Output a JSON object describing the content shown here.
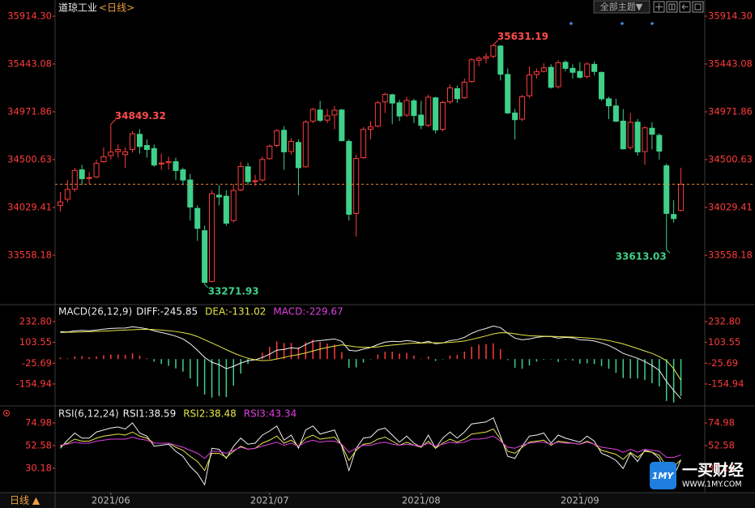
{
  "chart_data": [
    {
      "type": "candlestick",
      "title": "道琼工业",
      "subtitle": "<日线>",
      "categories": [
        null,
        null,
        null,
        null,
        null,
        null,
        null,
        "2021/06",
        null,
        null,
        null,
        null,
        null,
        null,
        null,
        null,
        null,
        null,
        null,
        null,
        null,
        null,
        null,
        null,
        null,
        null,
        null,
        null,
        null,
        "2021/07",
        null,
        null,
        null,
        null,
        null,
        null,
        null,
        null,
        null,
        null,
        null,
        null,
        null,
        null,
        null,
        null,
        null,
        null,
        null,
        null,
        "2021/08",
        null,
        null,
        null,
        null,
        null,
        null,
        null,
        null,
        null,
        null,
        null,
        null,
        null,
        null,
        null,
        null,
        null,
        null,
        null,
        null,
        null,
        "2021/09",
        null,
        null,
        null,
        null,
        null,
        null,
        null,
        null,
        null,
        null,
        null,
        null,
        null,
        null
      ],
      "open": [
        34050,
        34110,
        34210,
        34400,
        34320,
        34330,
        34480,
        34540,
        34580,
        34550,
        34600,
        34750,
        34640,
        34610,
        34460,
        34470,
        34480,
        34400,
        34300,
        34020,
        33800,
        33300,
        34150,
        34140,
        33900,
        34200,
        34430,
        34290,
        34300,
        34510,
        34640,
        34790,
        34580,
        34670,
        34430,
        34880,
        34990,
        34890,
        34940,
        34990,
        34680,
        33970,
        34520,
        34800,
        34830,
        35070,
        35140,
        35060,
        34940,
        35080,
        34940,
        34840,
        35110,
        34800,
        35070,
        35200,
        35110,
        35270,
        35480,
        35500,
        35520,
        35620,
        35340,
        34960,
        34900,
        35130,
        35340,
        35370,
        35410,
        35220,
        35460,
        35400,
        35370,
        35320,
        35440,
        35360,
        35100,
        35030,
        34880,
        34620,
        34870,
        34580,
        34810,
        34740,
        34440,
        33960,
        34000
      ],
      "high": [
        34180,
        34300,
        34420,
        34450,
        34380,
        34500,
        34620,
        34849.32,
        34650,
        34620,
        34780,
        34800,
        34700,
        34650,
        34560,
        34530,
        34520,
        34420,
        34360,
        34050,
        33850,
        34200,
        34250,
        34200,
        34260,
        34480,
        34470,
        34350,
        34530,
        34650,
        34800,
        34830,
        34710,
        34700,
        34890,
        35010,
        35080,
        35000,
        35030,
        35000,
        34700,
        34550,
        34820,
        34880,
        35080,
        35160,
        35150,
        35090,
        35120,
        35100,
        35080,
        35140,
        35120,
        35080,
        35240,
        35230,
        35300,
        35500,
        35520,
        35550,
        35631.19,
        35630,
        35400,
        35000,
        35140,
        35420,
        35400,
        35450,
        35440,
        35480,
        35480,
        35440,
        35460,
        35460,
        35470,
        35370,
        35120,
        35100,
        35000,
        34960,
        34900,
        34830,
        34870,
        34760,
        34460,
        34100,
        34420
      ],
      "low": [
        33990,
        34080,
        34180,
        34250,
        34260,
        34320,
        34470,
        34500,
        34520,
        34420,
        34570,
        34560,
        34520,
        34430,
        34400,
        34400,
        34300,
        34250,
        33900,
        33700,
        33271.93,
        33290,
        34050,
        33850,
        33880,
        34190,
        34250,
        34240,
        34280,
        34500,
        34620,
        34400,
        34550,
        34150,
        34420,
        34860,
        34870,
        34860,
        34800,
        34680,
        33900,
        33740,
        34510,
        34700,
        34820,
        34960,
        34850,
        34880,
        34920,
        34860,
        34800,
        34820,
        34760,
        34780,
        35050,
        35060,
        35100,
        35260,
        35420,
        35450,
        35500,
        35280,
        34950,
        34700,
        34880,
        35110,
        35300,
        35360,
        35200,
        35200,
        35370,
        35300,
        35300,
        35300,
        35330,
        35080,
        34900,
        34870,
        34600,
        34600,
        34540,
        34450,
        34600,
        34500,
        33613.03,
        33880,
        33990
      ],
      "close": [
        34084,
        34207,
        34394,
        34312,
        34323,
        34464,
        34529,
        34575,
        34600,
        34577,
        34756,
        34630,
        34600,
        34447,
        34466,
        34480,
        34393,
        34299,
        34033,
        33823,
        33290,
        34165,
        34133,
        33874,
        34196,
        34433,
        34283,
        34292,
        34502,
        34633,
        34786,
        34577,
        34681,
        34421,
        34870,
        34996,
        34888,
        34933,
        34987,
        34687,
        33962,
        34512,
        34798,
        34823,
        35061,
        35144,
        35058,
        34930,
        35084,
        34935,
        34838,
        35116,
        34793,
        35064,
        35208,
        35101,
        35264,
        35485,
        35499,
        35515,
        35625,
        35343,
        34961,
        34894,
        35120,
        35335,
        35366,
        35405,
        35213,
        35456,
        35400,
        35361,
        35312,
        35443,
        35369,
        35100,
        35031,
        34879,
        34607,
        34869,
        34577,
        34814,
        34751,
        34584,
        33970,
        33919,
        34258
      ],
      "up_color": "#ff3c3c",
      "down_color": "#3fd08a",
      "last_price_line": true,
      "last_price_color": "#e0863a",
      "ylim": [
        33079,
        36010
      ],
      "yticks": [
        {
          "value": 35914.3,
          "label": "35914.30"
        },
        35443.08,
        34971.86,
        34500.63,
        34029.41,
        33558.18
      ],
      "annotations": [
        {
          "label": "34849.32",
          "value": 34849.32,
          "kind": "high",
          "color": "#ff4d4d"
        },
        {
          "label": "33271.93",
          "value": 33271.93,
          "kind": "low",
          "color": "#3fd08a"
        },
        {
          "label": "35631.19",
          "value": 35631.19,
          "kind": "high",
          "color": "#ff4d4d"
        },
        {
          "label": "33613.03",
          "value": 33613.03,
          "kind": "low",
          "color": "#3fd08a"
        }
      ]
    },
    {
      "type": "macd",
      "title": "MACD(26,12,9)",
      "ylim": [
        -281,
        333
      ],
      "yticks": [
        {
          "value": 232.8,
          "label": "232.80"
        },
        103.55,
        -25.69,
        -154.94
      ],
      "series": [
        {
          "name": "DIFF:-245.85",
          "kind": "line",
          "color": "#f2f2f2",
          "values": [
            170,
            168,
            175,
            178,
            176,
            180,
            186,
            190,
            192,
            193,
            200,
            195,
            188,
            175,
            165,
            155,
            142,
            125,
            95,
            55,
            10,
            -20,
            -35,
            -60,
            -45,
            -25,
            -10,
            -5,
            10,
            30,
            55,
            60,
            70,
            65,
            90,
            110,
            115,
            120,
            125,
            110,
            55,
            50,
            62,
            72,
            90,
            105,
            110,
            108,
            115,
            110,
            100,
            110,
            95,
            100,
            115,
            120,
            135,
            160,
            178,
            190,
            205,
            195,
            160,
            130,
            120,
            125,
            135,
            140,
            140,
            130,
            135,
            132,
            120,
            118,
            112,
            100,
            85,
            62,
            35,
            20,
            5,
            -15,
            -40,
            -70,
            -140,
            -195,
            -245.85
          ]
        },
        {
          "name": "DEA:-131.02",
          "kind": "line",
          "color": "#e6e64a",
          "values": [
            165,
            166,
            167,
            169,
            170,
            172,
            174,
            176,
            178,
            180,
            182,
            184,
            185,
            183,
            180,
            176,
            171,
            164,
            155,
            140,
            120,
            100,
            80,
            58,
            38,
            20,
            5,
            -5,
            -10,
            -8,
            0,
            10,
            20,
            28,
            38,
            50,
            62,
            72,
            80,
            88,
            82,
            76,
            73,
            73,
            76,
            82,
            87,
            91,
            96,
            99,
            99,
            102,
            101,
            101,
            104,
            107,
            112,
            122,
            133,
            144,
            156,
            164,
            163,
            157,
            150,
            145,
            143,
            142,
            141,
            139,
            138,
            137,
            134,
            131,
            127,
            122,
            115,
            105,
            94,
            80,
            65,
            50,
            35,
            15,
            -10,
            -60,
            -131.02
          ]
        },
        {
          "name": "MACD:-229.67",
          "kind": "bar",
          "color": "#e040e0",
          "up_color": "#ff3c3c",
          "down_color": "#3fd08a",
          "values": [
            10,
            4,
            16,
            18,
            12,
            16,
            24,
            28,
            28,
            26,
            36,
            22,
            6,
            -16,
            -30,
            -42,
            -58,
            -78,
            -120,
            -170,
            -220,
            -240,
            -230,
            -236,
            -166,
            -90,
            -30,
            0,
            40,
            76,
            110,
            100,
            100,
            74,
            104,
            120,
            106,
            96,
            90,
            44,
            -54,
            -52,
            -22,
            -2,
            28,
            46,
            46,
            34,
            38,
            22,
            2,
            16,
            -12,
            -2,
            22,
            26,
            46,
            76,
            90,
            92,
            98,
            62,
            -6,
            -54,
            -60,
            -40,
            -16,
            -4,
            -2,
            -18,
            -6,
            -10,
            -28,
            -26,
            -30,
            -44,
            -60,
            -86,
            -118,
            -120,
            -120,
            -130,
            -150,
            -170,
            -260,
            -270,
            -229.67
          ]
        }
      ]
    },
    {
      "type": "line",
      "title": "RSI(6,12,24)",
      "ylim": [
        7,
        91
      ],
      "yticks": [
        74.98,
        52.58,
        30.18
      ],
      "series": [
        {
          "name": "RSI1:38.59",
          "color": "#f2f2f2",
          "values": [
            50,
            58,
            65,
            60,
            60,
            66,
            68,
            70,
            71,
            69,
            75,
            65,
            62,
            52,
            53,
            54,
            47,
            42,
            32,
            25,
            14,
            50,
            49,
            40,
            52,
            60,
            54,
            55,
            63,
            67,
            72,
            58,
            63,
            50,
            68,
            72,
            64,
            66,
            68,
            52,
            28,
            50,
            60,
            61,
            68,
            70,
            63,
            56,
            62,
            55,
            51,
            63,
            50,
            60,
            66,
            60,
            66,
            74,
            75,
            76,
            80,
            62,
            42,
            40,
            52,
            62,
            63,
            65,
            55,
            63,
            60,
            58,
            56,
            62,
            57,
            45,
            42,
            38,
            30,
            45,
            37,
            48,
            46,
            40,
            22,
            22,
            38.59
          ]
        },
        {
          "name": "RSI2:38.48",
          "color": "#e6e64a",
          "values": [
            52,
            55,
            59,
            57,
            57,
            60,
            62,
            63,
            64,
            63,
            66,
            62,
            60,
            55,
            55,
            55,
            51,
            48,
            42,
            37,
            28,
            45,
            45,
            41,
            47,
            52,
            49,
            50,
            55,
            58,
            62,
            55,
            58,
            52,
            60,
            63,
            59,
            60,
            61,
            53,
            38,
            48,
            54,
            55,
            59,
            61,
            57,
            53,
            56,
            53,
            51,
            57,
            50,
            55,
            59,
            56,
            59,
            64,
            65,
            66,
            69,
            59,
            47,
            45,
            51,
            56,
            57,
            58,
            53,
            57,
            56,
            55,
            54,
            57,
            54,
            48,
            46,
            44,
            39,
            46,
            41,
            47,
            46,
            43,
            32,
            32,
            38.48
          ]
        },
        {
          "name": "RSI3:43.34",
          "color": "#e040e0",
          "values": [
            53,
            54,
            56,
            55,
            55,
            57,
            58,
            59,
            59,
            59,
            61,
            59,
            58,
            55,
            55,
            55,
            53,
            51,
            48,
            45,
            40,
            47,
            47,
            45,
            48,
            51,
            49,
            50,
            52,
            54,
            56,
            53,
            55,
            52,
            56,
            58,
            56,
            57,
            57,
            54,
            46,
            50,
            53,
            53,
            55,
            56,
            54,
            53,
            54,
            53,
            52,
            55,
            52,
            54,
            56,
            55,
            56,
            59,
            59,
            60,
            62,
            57,
            51,
            50,
            53,
            55,
            56,
            56,
            54,
            56,
            55,
            55,
            54,
            56,
            54,
            51,
            50,
            49,
            46,
            49,
            46,
            49,
            48,
            47,
            41,
            41,
            43.34
          ]
        }
      ]
    }
  ],
  "ui": {
    "theme_button": "全部主题▼",
    "period_button": "日线 ▲",
    "watermark": {
      "logo": "1MY",
      "brand": "一买财经",
      "site": "WWW.1MY.COM"
    }
  }
}
